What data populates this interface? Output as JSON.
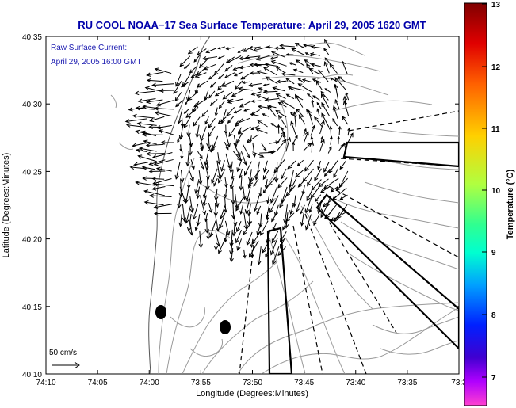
{
  "title": "RU COOL  NOAA−17  Sea Surface Temperature:  April 29, 2005 1620 GMT",
  "current_label_1": "Raw Surface Current:",
  "current_label_2": "April 29, 2005 16:00 GMT",
  "scale_label": "50 cm/s",
  "xlabel": "Longitude (Degrees:Minutes)",
  "ylabel": "Latitude (Degrees:Minutes)",
  "x_ticks": [
    "74:10",
    "74:05",
    "74:00",
    "73:55",
    "73:50",
    "73:45",
    "73:40",
    "73:35",
    "73:3"
  ],
  "y_ticks": [
    "40:35",
    "40:30",
    "40:25",
    "40:20",
    "40:15",
    "40:10"
  ],
  "colorbar": {
    "label": "Temperature (°C)",
    "ticks": [
      "13",
      "12",
      "11",
      "10",
      "9",
      "8",
      "7"
    ]
  },
  "colors": {
    "title": "#0000aa",
    "label_blue": "#1a1ab0",
    "contour": "#999999"
  }
}
